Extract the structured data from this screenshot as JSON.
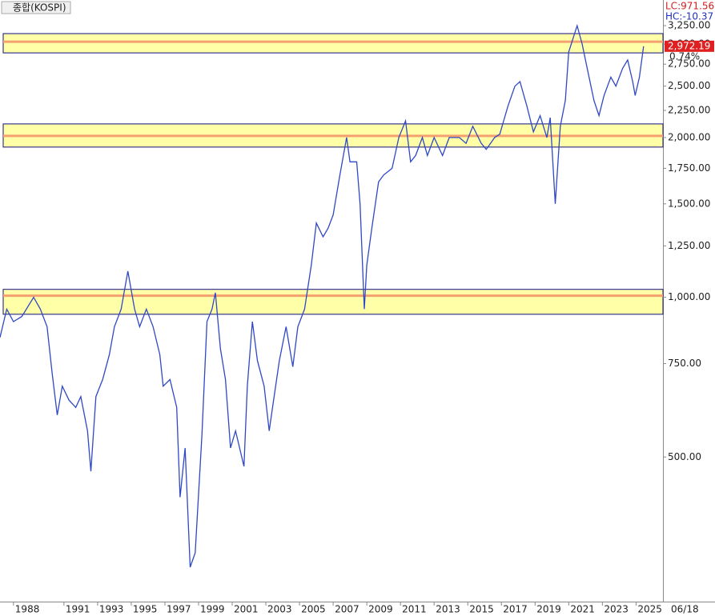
{
  "chart_data": {
    "type": "line",
    "title": "종합(KOSPI)",
    "annotations": {
      "lc": "LC:971.56",
      "hc": "HC:-10.37",
      "last_label": "2,972.19",
      "change": "0.74%",
      "date": "06/18"
    },
    "log_scale": true,
    "xlim": [
      1987.2,
      2026.6
    ],
    "xticks": [
      1988,
      1991,
      1993,
      1995,
      1997,
      1999,
      2001,
      2003,
      2005,
      2007,
      2009,
      2011,
      2013,
      2015,
      2017,
      2019,
      2021,
      2023,
      2025
    ],
    "ylim": [
      267,
      3633
    ],
    "yticks": [
      {
        "value": 500,
        "label": "500.00"
      },
      {
        "value": 750,
        "label": "750.00"
      },
      {
        "value": 1000,
        "label": "1,000.00"
      },
      {
        "value": 1250,
        "label": "1,250.00"
      },
      {
        "value": 1500,
        "label": "1,500.00"
      },
      {
        "value": 1750,
        "label": "1,750.00"
      },
      {
        "value": 2000,
        "label": "2,000.00"
      },
      {
        "value": 2250,
        "label": "2,250.00"
      },
      {
        "value": 2500,
        "label": "2,500.00"
      },
      {
        "value": 2750,
        "label": "2,750.00"
      },
      {
        "value": 3000,
        "label": "3,000.00"
      },
      {
        "value": 3250,
        "label": "3,250.00"
      }
    ],
    "bands": [
      [
        2888,
        3031,
        3140
      ],
      [
        1919,
        2014,
        2122
      ],
      [
        929,
        1007,
        1035
      ]
    ],
    "series": [
      {
        "name": "KOSPI",
        "color": "#2f48c4",
        "x": [
          1987.2,
          1987.6,
          1988.0,
          1988.5,
          1989.2,
          1989.6,
          1990.0,
          1990.3,
          1990.6,
          1990.9,
          1991.3,
          1991.7,
          1992.0,
          1992.4,
          1992.6,
          1992.9,
          1993.3,
          1993.7,
          1994.0,
          1994.4,
          1994.8,
          1995.2,
          1995.5,
          1995.9,
          1996.3,
          1996.7,
          1996.9,
          1997.3,
          1997.7,
          1997.9,
          1998.2,
          1998.5,
          1998.8,
          1999.2,
          1999.5,
          1999.8,
          2000.0,
          2000.3,
          2000.6,
          2000.9,
          2001.2,
          2001.7,
          2001.9,
          2002.2,
          2002.5,
          2002.9,
          2003.2,
          2003.4,
          2003.8,
          2004.2,
          2004.6,
          2004.9,
          2005.3,
          2005.7,
          2006.0,
          2006.4,
          2006.7,
          2007.0,
          2007.4,
          2007.8,
          2008.0,
          2008.4,
          2008.6,
          2008.85,
          2009.0,
          2009.3,
          2009.7,
          2010.0,
          2010.5,
          2010.9,
          2011.3,
          2011.6,
          2011.9,
          2012.3,
          2012.6,
          2013.0,
          2013.5,
          2013.9,
          2014.5,
          2014.9,
          2015.3,
          2015.8,
          2016.1,
          2016.6,
          2016.9,
          2017.4,
          2017.8,
          2018.1,
          2018.5,
          2018.9,
          2019.3,
          2019.7,
          2019.9,
          2020.2,
          2020.5,
          2020.8,
          2021.0,
          2021.5,
          2021.8,
          2022.1,
          2022.5,
          2022.8,
          2023.1,
          2023.5,
          2023.8,
          2024.2,
          2024.5,
          2024.8,
          2024.95,
          2025.2,
          2025.45
        ],
        "values": [
          840,
          950,
          900,
          920,
          1000,
          950,
          880,
          720,
          600,
          680,
          640,
          620,
          650,
          560,
          470,
          650,
          700,
          780,
          880,
          950,
          1120,
          950,
          880,
          950,
          880,
          780,
          680,
          700,
          620,
          420,
          520,
          310,
          330,
          550,
          900,
          950,
          1020,
          800,
          700,
          520,
          560,
          480,
          680,
          900,
          760,
          680,
          560,
          620,
          760,
          880,
          740,
          880,
          950,
          1150,
          1380,
          1300,
          1350,
          1430,
          1700,
          2000,
          1800,
          1800,
          1500,
          950,
          1150,
          1350,
          1650,
          1700,
          1750,
          2000,
          2150,
          1800,
          1850,
          2000,
          1850,
          2000,
          1850,
          2000,
          2000,
          1950,
          2100,
          1950,
          1900,
          2000,
          2030,
          2300,
          2500,
          2550,
          2300,
          2050,
          2200,
          2000,
          2180,
          1500,
          2100,
          2350,
          2900,
          3250,
          3000,
          2700,
          2350,
          2200,
          2400,
          2600,
          2500,
          2700,
          2800,
          2550,
          2400,
          2600,
          2972.19
        ]
      }
    ]
  }
}
